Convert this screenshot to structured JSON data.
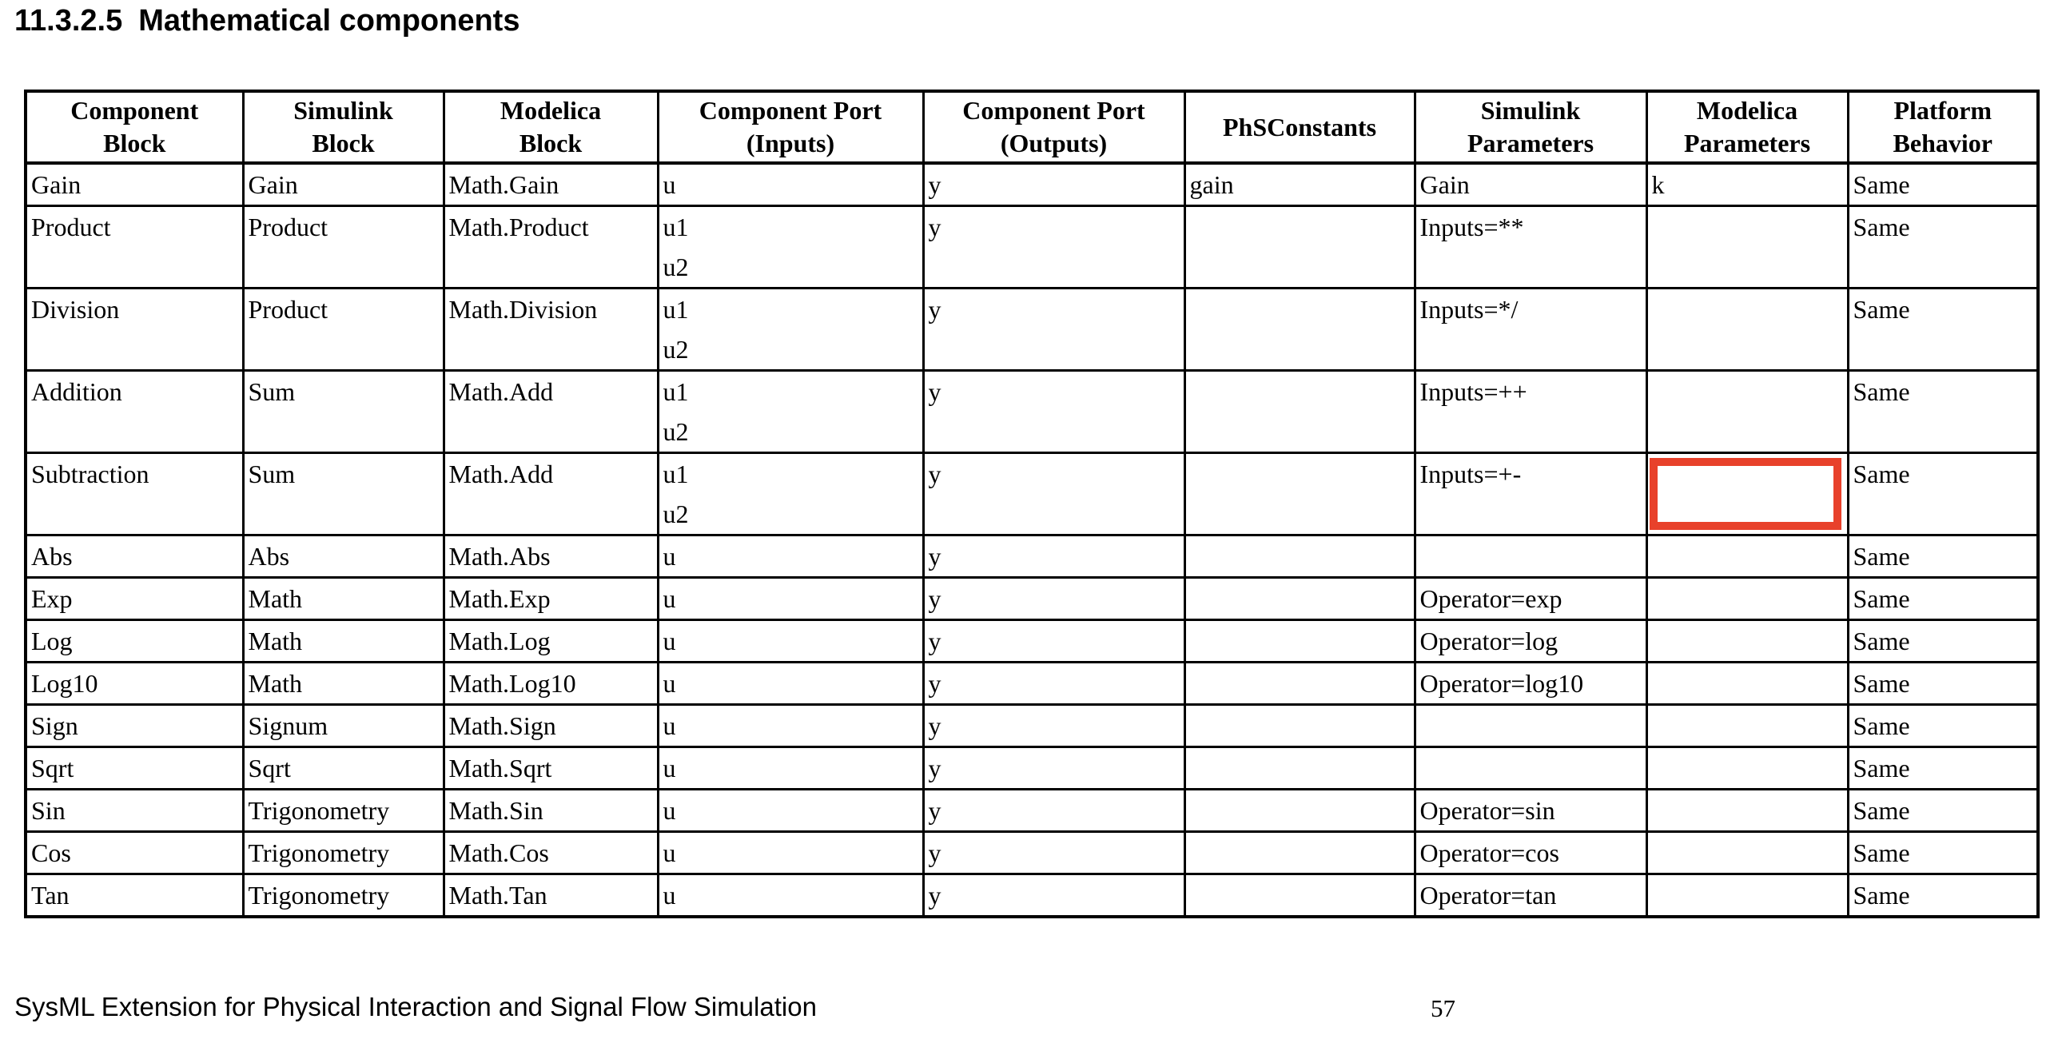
{
  "heading": {
    "number": "11.3.2.5",
    "title": "Mathematical components"
  },
  "table": {
    "columns": [
      "Component\nBlock",
      "Simulink\nBlock",
      "Modelica\nBlock",
      "Component Port\n(Inputs)",
      "Component Port\n(Outputs)",
      "PhSConstants",
      "Simulink\nParameters",
      "Modelica\nParameters",
      "Platform\nBehavior"
    ],
    "rows": [
      [
        "Gain",
        "Gain",
        "Math.Gain",
        "u",
        "y",
        "gain",
        "Gain",
        "k",
        "Same"
      ],
      [
        "Product",
        "Product",
        "Math.Product",
        "u1\nu2",
        "y",
        "",
        "Inputs=**",
        "",
        "Same"
      ],
      [
        "Division",
        "Product",
        "Math.Division",
        "u1\nu2",
        "y",
        "",
        "Inputs=*/",
        "",
        "Same"
      ],
      [
        "Addition",
        "Sum",
        "Math.Add",
        "u1\nu2",
        "y",
        "",
        "Inputs=++",
        "",
        "Same"
      ],
      [
        "Subtraction",
        "Sum",
        "Math.Add",
        "u1\nu2",
        "y",
        "",
        "Inputs=+-",
        "",
        "Same"
      ],
      [
        "Abs",
        "Abs",
        "Math.Abs",
        "u",
        "y",
        "",
        "",
        "",
        "Same"
      ],
      [
        "Exp",
        "Math",
        "Math.Exp",
        "u",
        "y",
        "",
        "Operator=exp",
        "",
        "Same"
      ],
      [
        "Log",
        "Math",
        "Math.Log",
        "u",
        "y",
        "",
        "Operator=log",
        "",
        "Same"
      ],
      [
        "Log10",
        "Math",
        "Math.Log10",
        "u",
        "y",
        "",
        "Operator=log10",
        "",
        "Same"
      ],
      [
        "Sign",
        "Signum",
        "Math.Sign",
        "u",
        "y",
        "",
        "",
        "",
        "Same"
      ],
      [
        "Sqrt",
        "Sqrt",
        "Math.Sqrt",
        "u",
        "y",
        "",
        "",
        "",
        "Same"
      ],
      [
        "Sin",
        "Trigonometry",
        "Math.Sin",
        "u",
        "y",
        "",
        "Operator=sin",
        "",
        "Same"
      ],
      [
        "Cos",
        "Trigonometry",
        "Math.Cos",
        "u",
        "y",
        "",
        "Operator=cos",
        "",
        "Same"
      ],
      [
        "Tan",
        "Trigonometry",
        "Math.Tan",
        "u",
        "y",
        "",
        "Operator=tan",
        "",
        "Same"
      ]
    ]
  },
  "annotation": {
    "row": 4,
    "col": 7,
    "color": "#E8412B"
  },
  "footer": {
    "text": "SysML Extension for Physical Interaction and Signal Flow Simulation",
    "page_number": "57"
  }
}
